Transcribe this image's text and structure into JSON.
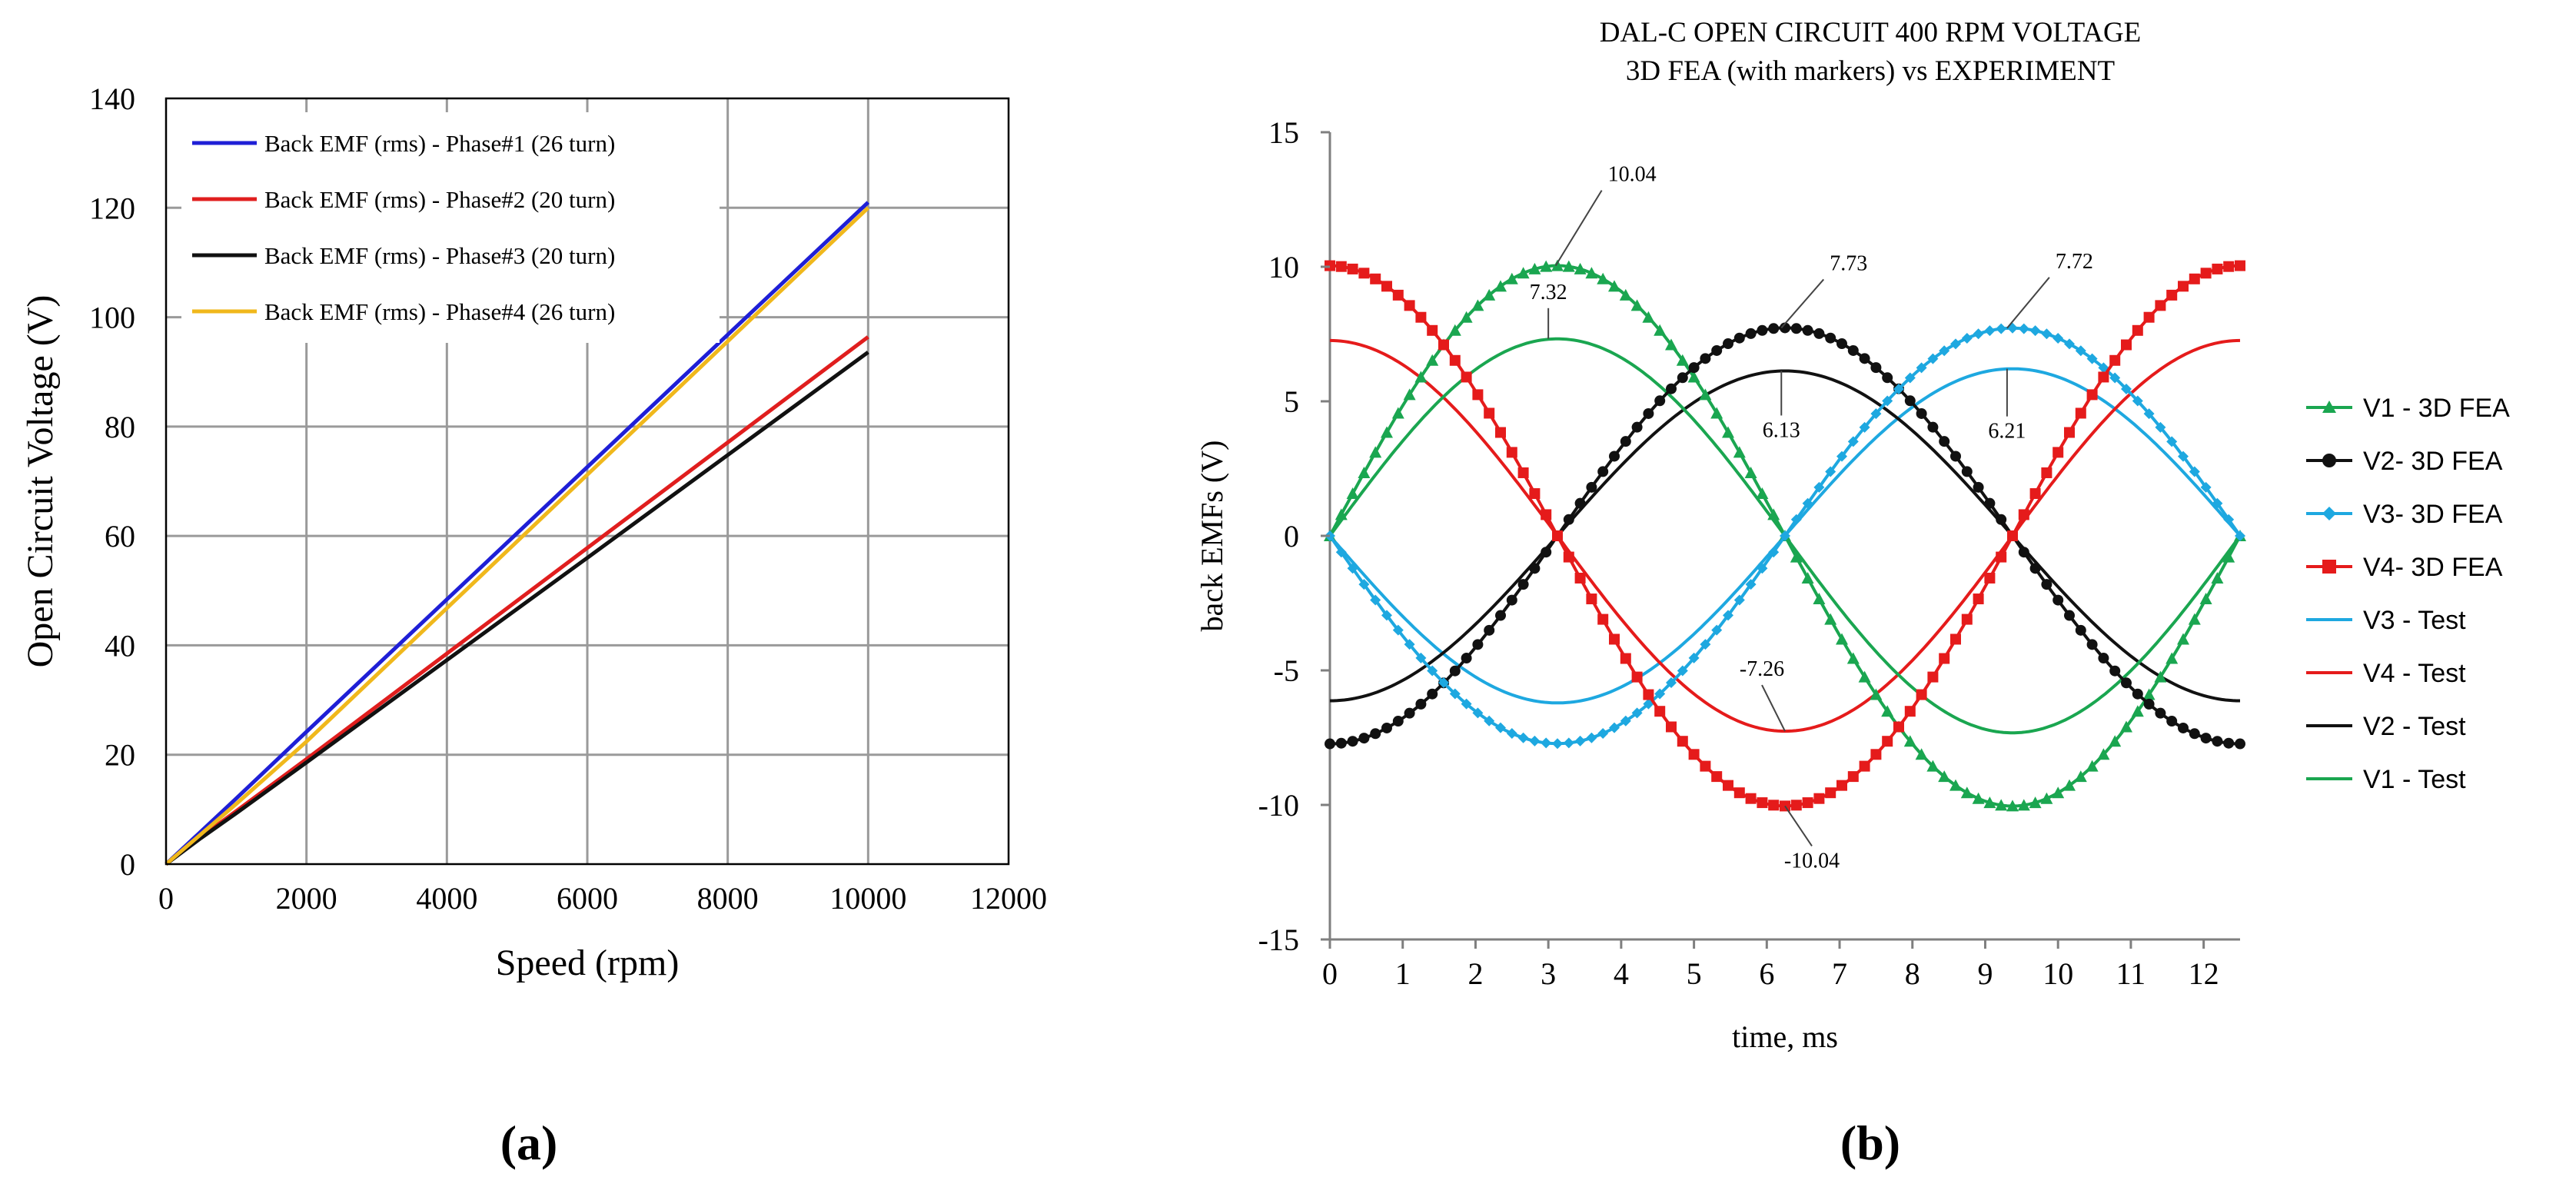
{
  "panels": {
    "a_caption": "(a)",
    "b_caption": "(b)"
  },
  "chart_data": [
    {
      "id": "a",
      "type": "line",
      "title": "",
      "xlabel": "Speed (rpm)",
      "ylabel": "Open Circuit  Voltage  (V)",
      "xlim": [
        0,
        12000
      ],
      "ylim": [
        0,
        140
      ],
      "xticks": [
        "0",
        "2000",
        "4000",
        "6000",
        "8000",
        "10000",
        "12000"
      ],
      "yticks": [
        "0",
        "20",
        "40",
        "60",
        "80",
        "100",
        "120",
        "140"
      ],
      "grid": true,
      "legend_position": "top-left",
      "series": [
        {
          "name": "Back EMF (rms) - Phase#1 (26 turn)",
          "color": "#1f1fd6",
          "x": [
            0,
            500,
            1000,
            2000,
            4000,
            6000,
            8000,
            10000
          ],
          "y": [
            0,
            6,
            12,
            24.2,
            48.4,
            72.6,
            96.8,
            121
          ]
        },
        {
          "name": "Back EMF (rms) - Phase#2 (20 turn)",
          "color": "#e01e1e",
          "x": [
            0,
            500,
            1000,
            2000,
            4000,
            6000,
            8000,
            10000
          ],
          "y": [
            0,
            5,
            9.7,
            19.2,
            38.5,
            57.8,
            77.1,
            96.4
          ]
        },
        {
          "name": "Back EMF (rms) - Phase#3 (20 turn)",
          "color": "#111111",
          "x": [
            0,
            500,
            1000,
            2000,
            4000,
            6000,
            8000,
            10000
          ],
          "y": [
            0,
            4.8,
            9.3,
            18.6,
            37.3,
            56,
            74.8,
            93.6
          ]
        },
        {
          "name": "Back EMF (rms) - Phase#4 (26 turn)",
          "color": "#f0b81c",
          "x": [
            0,
            500,
            1000,
            2000,
            4000,
            6000,
            8000,
            10000
          ],
          "y": [
            0,
            5.5,
            11,
            22.4,
            46.8,
            71.2,
            95.6,
            120
          ]
        }
      ]
    },
    {
      "id": "b",
      "type": "line",
      "title": "DAL-C OPEN CIRCUIT 400 RPM VOLTAGE",
      "subtitle": "3D FEA (with markers) vs EXPERIMENT",
      "xlabel": "time, ms",
      "ylabel": "back EMFs (V)",
      "xlim": [
        0,
        12.5
      ],
      "ylim": [
        -15,
        15
      ],
      "xticks": [
        "0",
        "1",
        "2",
        "3",
        "4",
        "5",
        "6",
        "7",
        "8",
        "9",
        "10",
        "11",
        "12"
      ],
      "yticks": [
        "-15",
        "-10",
        "-5",
        "0",
        "5",
        "10",
        "15"
      ],
      "grid": false,
      "legend_position": "right",
      "period_ms": 12.5,
      "series": [
        {
          "name": "V1 - 3D FEA",
          "color": "#1aa650",
          "marker": "triangle",
          "amplitude": 10.04,
          "peak_time_ms": 3.125
        },
        {
          "name": "V2- 3D FEA",
          "color": "#111111",
          "marker": "circle",
          "amplitude": 7.73,
          "peak_time_ms": 6.25
        },
        {
          "name": "V3- 3D FEA",
          "color": "#1ea8e0",
          "marker": "diamond",
          "amplitude": 7.72,
          "peak_time_ms": 9.375
        },
        {
          "name": "V4- 3D FEA",
          "color": "#e51b1b",
          "marker": "square",
          "amplitude": 10.04,
          "peak_time_ms": 0
        },
        {
          "name": "V3 - Test",
          "color": "#1ea8e0",
          "marker": "none",
          "amplitude": 6.21,
          "peak_time_ms": 9.375
        },
        {
          "name": "V4 - Test",
          "color": "#e51b1b",
          "marker": "none",
          "amplitude": 7.26,
          "peak_time_ms": 0
        },
        {
          "name": "V2 - Test",
          "color": "#111111",
          "marker": "none",
          "amplitude": 6.13,
          "peak_time_ms": 6.25
        },
        {
          "name": "V1 - Test",
          "color": "#1aa650",
          "marker": "none",
          "amplitude": 7.32,
          "peak_time_ms": 3.125
        }
      ],
      "annotations": [
        {
          "text": "10.04",
          "x": 3.1,
          "y": 10.04
        },
        {
          "text": "7.32",
          "x": 3.0,
          "y": 7.32
        },
        {
          "text": "7.73",
          "x": 6.2,
          "y": 7.73
        },
        {
          "text": "6.13",
          "x": 6.2,
          "y": 6.13
        },
        {
          "text": "7.72",
          "x": 9.3,
          "y": 7.72
        },
        {
          "text": "6.21",
          "x": 9.3,
          "y": 6.21
        },
        {
          "text": "-7.26",
          "x": 6.25,
          "y": -7.26
        },
        {
          "text": "-10.04",
          "x": 6.25,
          "y": -10.04
        }
      ]
    }
  ]
}
